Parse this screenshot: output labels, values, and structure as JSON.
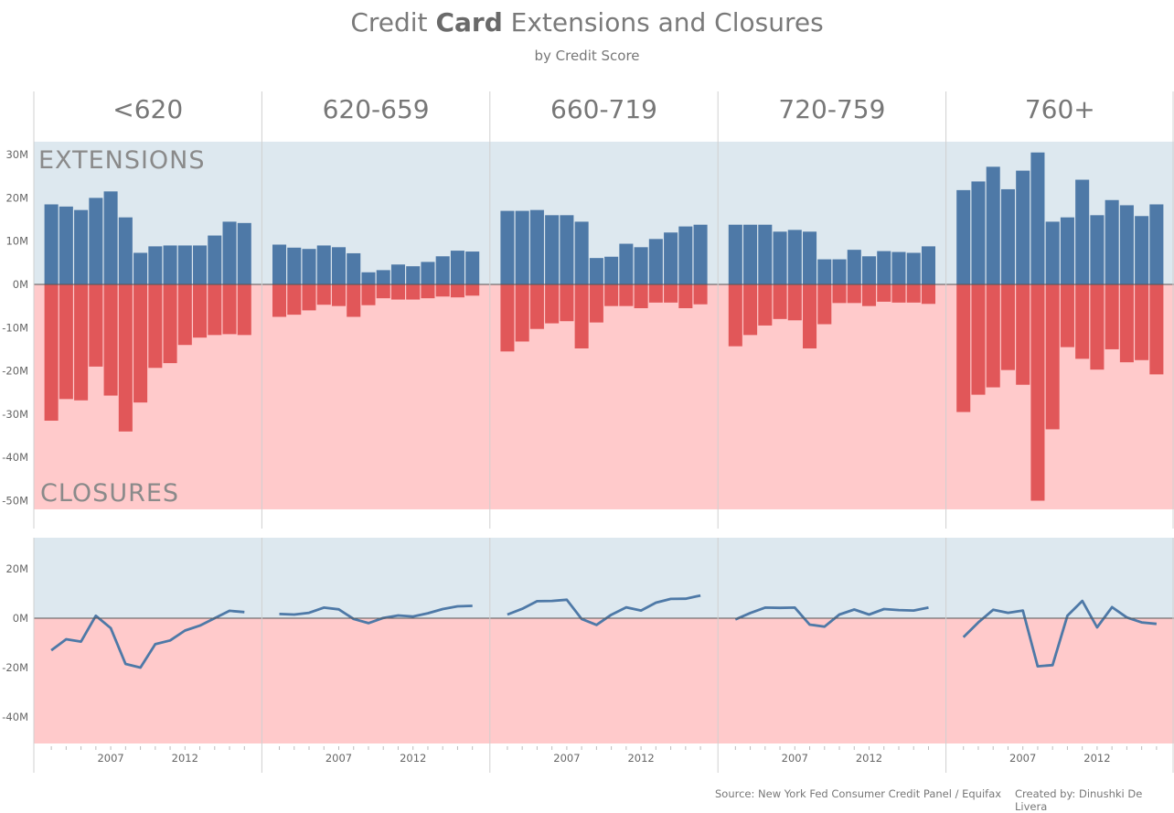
{
  "header": {
    "title_pre": "Credit ",
    "title_bold": "Card",
    "title_post": " Extensions and Closures",
    "subtitle": "by Credit Score"
  },
  "footer": {
    "source": "Source: New York Fed Consumer Credit Panel / Equifax",
    "credit": "Created by: Dinushki De Livera"
  },
  "colors": {
    "extensions_bar": "#4e79a7",
    "closures_bar": "#e15759",
    "extensions_bg": "#dde8ef",
    "closures_bg": "#ffcacb",
    "net_line": "#4e79a7"
  },
  "chart_data": [
    {
      "type": "bar",
      "panel": "top",
      "band_labels": {
        "top": "EXTENSIONS",
        "bottom": "CLOSURES"
      },
      "ylim": [
        -52,
        33
      ],
      "yticks": [
        30,
        20,
        10,
        0,
        -10,
        -20,
        -30,
        -40,
        -50
      ],
      "ytick_labels": [
        "30M",
        "20M",
        "10M",
        "0M",
        "-10M",
        "-20M",
        "-30M",
        "-40M",
        "-50M"
      ],
      "years": [
        2003,
        2004,
        2005,
        2006,
        2007,
        2008,
        2009,
        2010,
        2011,
        2012,
        2013,
        2014,
        2015,
        2016
      ],
      "groups": [
        {
          "name": "<620",
          "extensions": [
            18.5,
            18,
            17.2,
            20,
            21.5,
            15.5,
            7.3,
            8.8,
            9,
            9,
            9,
            11.3,
            14.5,
            14.2
          ],
          "closures": [
            -31.5,
            -26.5,
            -26.8,
            -19,
            -25.7,
            -34,
            -27.3,
            -19.3,
            -18.2,
            -14,
            -12.3,
            -11.7,
            -11.5,
            -11.7
          ]
        },
        {
          "name": "620-659",
          "extensions": [
            9.2,
            8.5,
            8.2,
            9,
            8.6,
            7.2,
            2.8,
            3.3,
            4.6,
            4.2,
            5.2,
            6.5,
            7.8,
            7.6
          ],
          "closures": [
            -7.5,
            -7,
            -6,
            -4.7,
            -5,
            -7.5,
            -4.8,
            -3.2,
            -3.5,
            -3.5,
            -3.2,
            -2.8,
            -3,
            -2.6
          ]
        },
        {
          "name": "660-719",
          "extensions": [
            17,
            17,
            17.2,
            16,
            16,
            14.5,
            6.1,
            6.4,
            9.4,
            8.6,
            10.5,
            12,
            13.4,
            13.8
          ],
          "closures": [
            -15.5,
            -13.2,
            -10.3,
            -9,
            -8.5,
            -14.8,
            -8.8,
            -5,
            -5,
            -5.5,
            -4.2,
            -4.2,
            -5.5,
            -4.6
          ]
        },
        {
          "name": "720-759",
          "extensions": [
            13.8,
            13.8,
            13.8,
            12.2,
            12.6,
            12.2,
            5.8,
            5.8,
            8,
            6.5,
            7.7,
            7.5,
            7.3,
            8.8
          ],
          "closures": [
            -14.3,
            -11.7,
            -9.5,
            -8,
            -8.3,
            -14.8,
            -9.2,
            -4.3,
            -4.3,
            -5,
            -4,
            -4.2,
            -4.2,
            -4.5
          ]
        },
        {
          "name": "760+",
          "extensions": [
            21.8,
            23.8,
            27.2,
            22,
            26.3,
            30.5,
            14.5,
            15.5,
            24.2,
            16,
            19.5,
            18.3,
            15.8,
            18.5
          ],
          "closures": [
            -29.5,
            -25.5,
            -23.8,
            -19.8,
            -23.2,
            -50,
            -33.5,
            -14.5,
            -17.2,
            -19.7,
            -15,
            -18,
            -17.5,
            -20.8
          ]
        }
      ]
    },
    {
      "type": "line",
      "panel": "bottom",
      "ylim": [
        -52,
        33
      ],
      "yticks": [
        20,
        0,
        -20,
        -40
      ],
      "ytick_labels": [
        "20M",
        "0M",
        "-20M",
        "-40M"
      ],
      "xtick_labels": [
        "2007",
        "2012"
      ],
      "xtick_years": [
        2007,
        2012
      ],
      "years": [
        2003,
        2004,
        2005,
        2006,
        2007,
        2008,
        2009,
        2010,
        2011,
        2012,
        2013,
        2014,
        2015,
        2016
      ],
      "groups": [
        {
          "name": "<620",
          "net": [
            -13,
            -8.5,
            -9.5,
            1,
            -4,
            -18.5,
            -20,
            -10.5,
            -9,
            -5,
            -3,
            0,
            3,
            2.5
          ]
        },
        {
          "name": "620-659",
          "net": [
            1.7,
            1.5,
            2.2,
            4.3,
            3.6,
            -0.3,
            -2,
            0.1,
            1.1,
            0.7,
            2,
            3.7,
            4.8,
            5
          ]
        },
        {
          "name": "660-719",
          "net": [
            1.5,
            3.8,
            6.9,
            7,
            7.5,
            -0.3,
            -2.7,
            1.4,
            4.4,
            3.1,
            6.3,
            7.8,
            7.9,
            9.2
          ]
        },
        {
          "name": "720-759",
          "net": [
            -0.5,
            2.1,
            4.3,
            4.2,
            4.3,
            -2.6,
            -3.4,
            1.5,
            3.5,
            1.5,
            3.7,
            3.3,
            3.1,
            4.3
          ]
        },
        {
          "name": "760+",
          "net": [
            -7.7,
            -1.7,
            3.4,
            2.2,
            3.1,
            -19.5,
            -19,
            1,
            7,
            -3.7,
            4.5,
            0.3,
            -1.7,
            -2.3
          ]
        }
      ]
    }
  ]
}
